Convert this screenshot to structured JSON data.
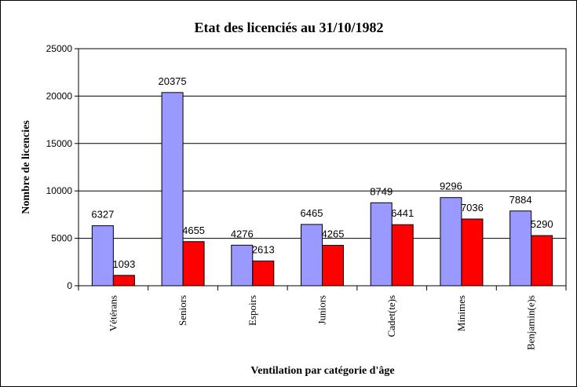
{
  "chart_data": {
    "type": "bar",
    "title": "Etat des licenciés au 31/10/1982",
    "xlabel": "Ventilation par catégorie d'âge",
    "ylabel": "Nombre de licencies",
    "ylim": [
      0,
      25000
    ],
    "yticks": [
      0,
      5000,
      10000,
      15000,
      20000,
      25000
    ],
    "grid": true,
    "legend": "none",
    "categories": [
      "Vétérans",
      "Seniors",
      "Espoirs",
      "Juniors",
      "Cadet(te)s",
      "Minimes",
      "Benjamin(e)s"
    ],
    "series": [
      {
        "values": [
          6327,
          20375,
          4276,
          6465,
          8749,
          9296,
          7884
        ],
        "color": "#9999ff"
      },
      {
        "values": [
          1093,
          4655,
          2613,
          4265,
          6441,
          7036,
          5290
        ],
        "color": "#ff0000"
      }
    ]
  }
}
